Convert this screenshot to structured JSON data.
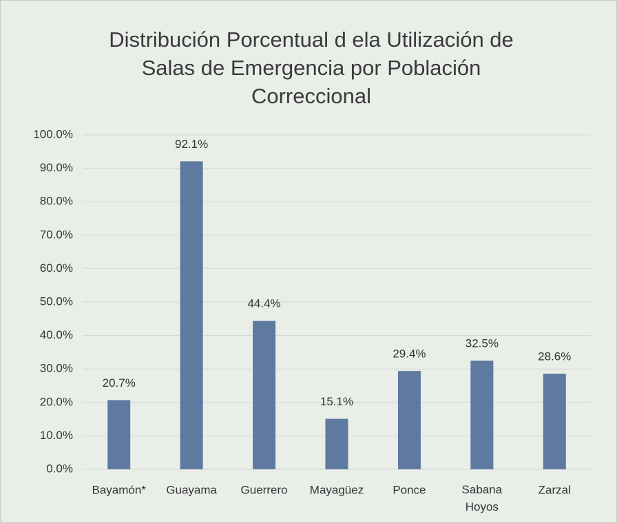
{
  "chart_data": {
    "type": "bar",
    "title": [
      "Distribución Porcentual d ela Utilización de",
      "Salas de Emergencia por Población",
      "Correccional"
    ],
    "categories": [
      "Bayamón*",
      "Guayama",
      "Guerrero",
      "Mayagüez",
      "Ponce",
      "Sabana Hoyos",
      "Zarzal"
    ],
    "values": [
      20.7,
      92.1,
      44.4,
      15.1,
      29.4,
      32.5,
      28.6
    ],
    "value_labels": [
      "20.7%",
      "92.1%",
      "44.4%",
      "15.1%",
      "29.4%",
      "32.5%",
      "28.6%"
    ],
    "color": "#5f7aa0",
    "ylim": [
      0,
      100
    ],
    "yticks": [
      {
        "value": 0,
        "label": "0.0%"
      },
      {
        "value": 10,
        "label": "10.0%"
      },
      {
        "value": 20,
        "label": "20.0%"
      },
      {
        "value": 30,
        "label": "30.0%"
      },
      {
        "value": 40,
        "label": "40.0%"
      },
      {
        "value": 50,
        "label": "50.0%"
      },
      {
        "value": 60,
        "label": "60.0%"
      },
      {
        "value": 70,
        "label": "70.0%"
      },
      {
        "value": 80,
        "label": "80.0%"
      },
      {
        "value": 90,
        "label": "90.0%"
      },
      {
        "value": 100,
        "label": "100.0%"
      }
    ],
    "grid": true
  }
}
